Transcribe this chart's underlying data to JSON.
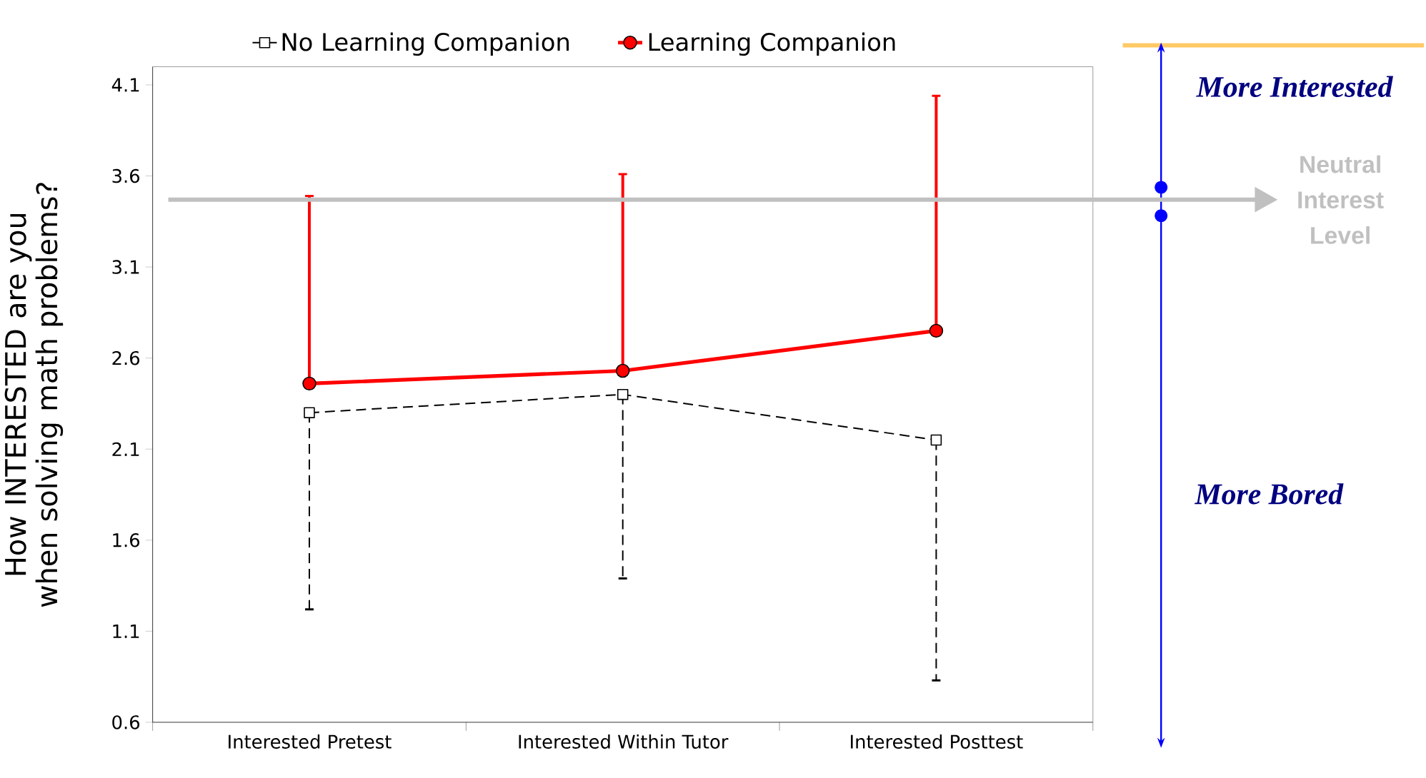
{
  "chart_data": {
    "type": "line",
    "categories": [
      "Interested Pretest",
      "Interested Within Tutor",
      "Interested Posttest"
    ],
    "ylabel": "How INTERESTED are you when solving math problems?",
    "ylim": [
      0.6,
      4.2
    ],
    "yticks": [
      0.6,
      1.1,
      1.6,
      2.1,
      2.6,
      3.1,
      3.6,
      4.1
    ],
    "series": [
      {
        "name": "No Learning Companion",
        "color": "#000000",
        "marker": "square",
        "line_style": "dashed",
        "values": [
          2.3,
          2.4,
          2.15
        ],
        "errors": [
          [
            1.22,
            2.3
          ],
          [
            1.39,
            2.4
          ],
          [
            0.83,
            2.15
          ]
        ]
      },
      {
        "name": "Learning Companion",
        "color": "#ff0000",
        "marker": "circle",
        "line_style": "solid",
        "values": [
          2.46,
          2.53,
          2.75
        ],
        "errors": [
          [
            2.46,
            3.49
          ],
          [
            2.53,
            3.61
          ],
          [
            2.75,
            4.04
          ]
        ]
      }
    ],
    "ref_lines": [
      {
        "axis": "y",
        "value": 3.47,
        "label": "Neutral Interest Level",
        "color": "#c0c0c0"
      }
    ],
    "annotations": [
      "More Interested",
      "More Bored"
    ],
    "legend": "top"
  }
}
